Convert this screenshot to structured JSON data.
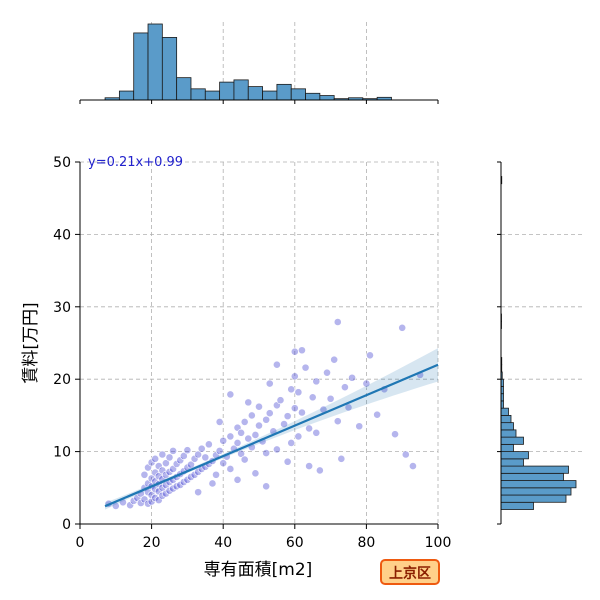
{
  "chart_data": {
    "type": "scatter",
    "xlabel": "専有面積[m2]",
    "ylabel": "賃料[万円]",
    "xlim": [
      0,
      100
    ],
    "ylim": [
      0,
      50
    ],
    "xticks": [
      "0",
      "20",
      "40",
      "60",
      "80",
      "100"
    ],
    "yticks": [
      "0",
      "10",
      "20",
      "30",
      "40",
      "50"
    ],
    "grid": true,
    "annotation": "y=0.21x+0.99",
    "badge": "上京区",
    "regression": {
      "slope": 0.21,
      "intercept": 0.99,
      "x_range": [
        7,
        100
      ]
    },
    "marginal_x_hist": {
      "bin_start": 7,
      "bin_width": 4,
      "counts": [
        0.5,
        2,
        15,
        17,
        14,
        5,
        2.5,
        2,
        4,
        4.5,
        3,
        2,
        3.5,
        2.5,
        1.5,
        1,
        0.3,
        0.5,
        0.3,
        0.6
      ]
    },
    "marginal_y_hist": {
      "bin_start": 2,
      "bin_width": 1,
      "counts": [
        13,
        26,
        28,
        30,
        25,
        27,
        9,
        11,
        5,
        9,
        6,
        5,
        4,
        3,
        1,
        1,
        1,
        1,
        0.5,
        0.3,
        0.3,
        0,
        0,
        0,
        0,
        0.2,
        0.2,
        0,
        0,
        0,
        0,
        0,
        0,
        0,
        0,
        0,
        0,
        0,
        0,
        0,
        0,
        0,
        0,
        0,
        0,
        0.3
      ]
    },
    "points": [
      [
        8,
        2.8
      ],
      [
        10,
        2.5
      ],
      [
        12,
        3.0
      ],
      [
        14,
        2.6
      ],
      [
        15,
        3.2
      ],
      [
        16,
        3.6
      ],
      [
        17,
        2.9
      ],
      [
        17,
        4.2
      ],
      [
        18,
        3.4
      ],
      [
        18,
        5.0
      ],
      [
        18,
        6.8
      ],
      [
        19,
        2.8
      ],
      [
        19,
        4.4
      ],
      [
        19,
        5.6
      ],
      [
        19,
        7.8
      ],
      [
        20,
        3.1
      ],
      [
        20,
        4.0
      ],
      [
        20,
        5.2
      ],
      [
        20,
        6.3
      ],
      [
        20,
        8.5
      ],
      [
        21,
        3.6
      ],
      [
        21,
        4.8
      ],
      [
        21,
        5.9
      ],
      [
        21,
        7.1
      ],
      [
        21,
        9.0
      ],
      [
        22,
        3.3
      ],
      [
        22,
        4.5
      ],
      [
        22,
        5.5
      ],
      [
        22,
        6.6
      ],
      [
        22,
        8.0
      ],
      [
        23,
        3.9
      ],
      [
        23,
        5.0
      ],
      [
        23,
        6.2
      ],
      [
        23,
        7.4
      ],
      [
        23,
        9.6
      ],
      [
        24,
        4.2
      ],
      [
        24,
        5.4
      ],
      [
        24,
        6.8
      ],
      [
        24,
        8.4
      ],
      [
        25,
        4.6
      ],
      [
        25,
        5.8
      ],
      [
        25,
        7.2
      ],
      [
        25,
        9.2
      ],
      [
        26,
        4.9
      ],
      [
        26,
        6.1
      ],
      [
        26,
        7.6
      ],
      [
        26,
        10.1
      ],
      [
        27,
        5.2
      ],
      [
        27,
        6.5
      ],
      [
        27,
        8.3
      ],
      [
        28,
        5.4
      ],
      [
        28,
        6.9
      ],
      [
        28,
        8.8
      ],
      [
        29,
        5.8
      ],
      [
        29,
        7.3
      ],
      [
        29,
        9.4
      ],
      [
        30,
        6.1
      ],
      [
        30,
        7.8
      ],
      [
        30,
        10.2
      ],
      [
        31,
        6.5
      ],
      [
        31,
        8.2
      ],
      [
        32,
        6.8
      ],
      [
        32,
        9.0
      ],
      [
        33,
        7.2
      ],
      [
        33,
        9.6
      ],
      [
        34,
        7.6
      ],
      [
        34,
        10.4
      ],
      [
        35,
        7.9
      ],
      [
        35,
        9.2
      ],
      [
        36,
        8.3
      ],
      [
        36,
        11.0
      ],
      [
        37,
        8.7
      ],
      [
        38,
        6.8
      ],
      [
        38,
        9.5
      ],
      [
        39,
        10.1
      ],
      [
        40,
        8.4
      ],
      [
        40,
        11.5
      ],
      [
        41,
        9.3
      ],
      [
        42,
        12.1
      ],
      [
        42,
        7.6
      ],
      [
        43,
        10.4
      ],
      [
        44,
        11.2
      ],
      [
        44,
        13.3
      ],
      [
        45,
        9.7
      ],
      [
        45,
        12.6
      ],
      [
        46,
        14.1
      ],
      [
        46,
        8.9
      ],
      [
        47,
        11.8
      ],
      [
        48,
        10.6
      ],
      [
        48,
        15.0
      ],
      [
        49,
        12.3
      ],
      [
        50,
        13.6
      ],
      [
        50,
        16.2
      ],
      [
        51,
        11.4
      ],
      [
        52,
        14.4
      ],
      [
        52,
        9.8
      ],
      [
        53,
        15.3
      ],
      [
        54,
        12.8
      ],
      [
        55,
        16.4
      ],
      [
        55,
        10.3
      ],
      [
        56,
        17.1
      ],
      [
        57,
        13.8
      ],
      [
        58,
        14.9
      ],
      [
        59,
        11.2
      ],
      [
        59,
        18.6
      ],
      [
        60,
        16.0
      ],
      [
        60,
        20.4
      ],
      [
        60,
        23.8
      ],
      [
        61,
        12.1
      ],
      [
        61,
        18.2
      ],
      [
        62,
        15.4
      ],
      [
        63,
        21.6
      ],
      [
        64,
        13.2
      ],
      [
        65,
        17.5
      ],
      [
        66,
        19.7
      ],
      [
        66,
        12.6
      ],
      [
        68,
        15.8
      ],
      [
        69,
        20.9
      ],
      [
        70,
        17.3
      ],
      [
        71,
        22.7
      ],
      [
        72,
        14.2
      ],
      [
        72,
        27.9
      ],
      [
        74,
        18.9
      ],
      [
        75,
        16.1
      ],
      [
        76,
        20.2
      ],
      [
        78,
        13.5
      ],
      [
        80,
        19.4
      ],
      [
        81,
        23.3
      ],
      [
        83,
        15.1
      ],
      [
        85,
        18.6
      ],
      [
        88,
        12.4
      ],
      [
        90,
        27.1
      ],
      [
        91,
        9.6
      ],
      [
        93,
        8.0
      ],
      [
        95,
        20.6
      ],
      [
        55,
        22.0
      ],
      [
        64,
        8.0
      ],
      [
        67,
        7.4
      ],
      [
        73,
        9.0
      ],
      [
        33,
        4.4
      ],
      [
        37,
        5.6
      ],
      [
        44,
        6.1
      ],
      [
        49,
        7.0
      ],
      [
        52,
        5.2
      ],
      [
        58,
        8.6
      ],
      [
        39,
        14.1
      ],
      [
        47,
        16.8
      ],
      [
        53,
        19.4
      ],
      [
        62,
        24.0
      ],
      [
        42,
        17.9
      ]
    ]
  }
}
